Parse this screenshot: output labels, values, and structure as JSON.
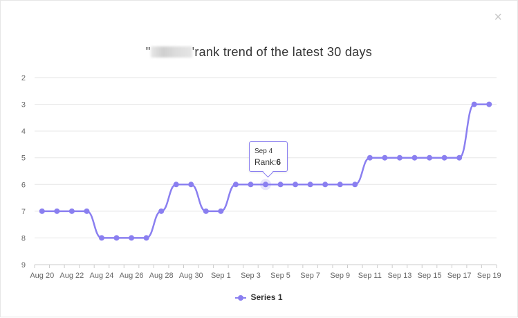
{
  "dialog": {
    "close_glyph": "×"
  },
  "chart_data": {
    "type": "line",
    "title_prefix": "\"",
    "title_suffix": "'rank trend of the latest 30 days",
    "categories": [
      "Aug 20",
      "Aug 21",
      "Aug 22",
      "Aug 23",
      "Aug 24",
      "Aug 25",
      "Aug 26",
      "Aug 27",
      "Aug 28",
      "Aug 29",
      "Aug 30",
      "Aug 31",
      "Sep 1",
      "Sep 2",
      "Sep 3",
      "Sep 4",
      "Sep 5",
      "Sep 6",
      "Sep 7",
      "Sep 8",
      "Sep 9",
      "Sep 10",
      "Sep 11",
      "Sep 12",
      "Sep 13",
      "Sep 14",
      "Sep 15",
      "Sep 16",
      "Sep 17",
      "Sep 18",
      "Sep 19"
    ],
    "x_tick_labels": [
      "Aug 20",
      "Aug 22",
      "Aug 24",
      "Aug 26",
      "Aug 28",
      "Aug 30",
      "Sep 1",
      "Sep 3",
      "Sep 5",
      "Sep 7",
      "Sep 9",
      "Sep 11",
      "Sep 13",
      "Sep 15",
      "Sep 17",
      "Sep 19"
    ],
    "series": [
      {
        "name": "Series 1",
        "values": [
          7,
          7,
          7,
          7,
          8,
          8,
          8,
          8,
          7,
          6,
          6,
          7,
          7,
          6,
          6,
          6,
          6,
          6,
          6,
          6,
          6,
          6,
          5,
          5,
          5,
          5,
          5,
          5,
          5,
          3,
          3
        ]
      }
    ],
    "y_ticks": [
      2,
      3,
      4,
      5,
      6,
      7,
      8,
      9
    ],
    "ylim": [
      2,
      9
    ],
    "y_reversed": true,
    "grid": true,
    "legend_position": "bottom",
    "color": "#8a7ff0",
    "tooltip": {
      "date": "Sep 4",
      "label": "Rank:",
      "value": "6"
    }
  }
}
